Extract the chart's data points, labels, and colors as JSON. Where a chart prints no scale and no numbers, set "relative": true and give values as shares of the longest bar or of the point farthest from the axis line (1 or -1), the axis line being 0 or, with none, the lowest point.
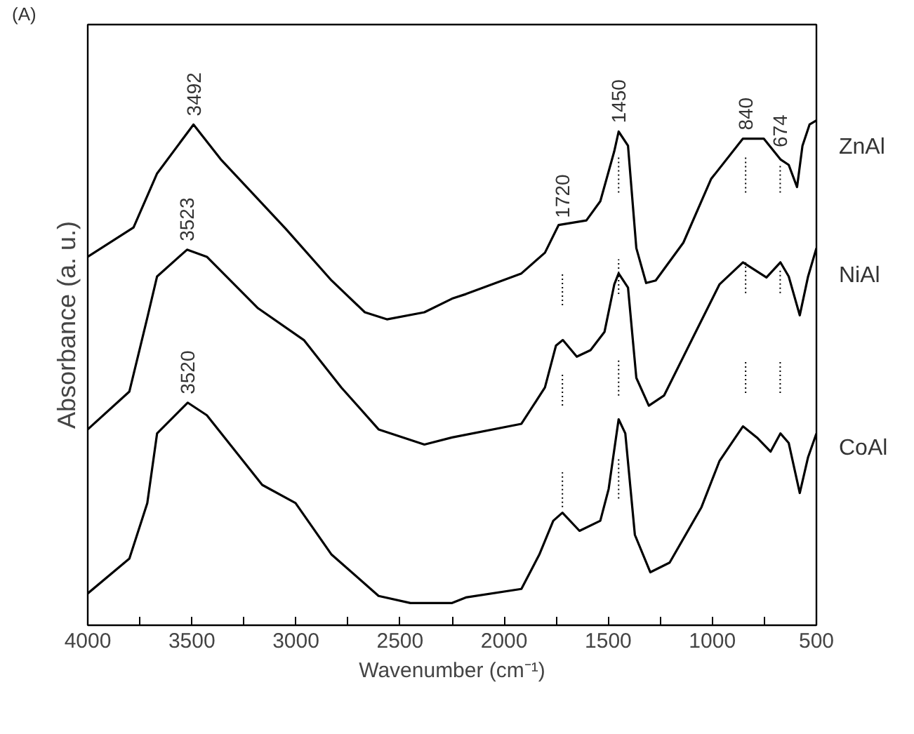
{
  "chart_data": {
    "type": "line",
    "relative": true,
    "xlabel": "Wavenumber (cm⁻¹)",
    "ylabel": "Absorbance (a. u.)",
    "xlim": [
      4000,
      500
    ],
    "xticks": [
      4000,
      {
        "value": 3750,
        "label": null
      },
      3500,
      {
        "value": 3250,
        "label": null
      },
      3000,
      {
        "value": 2750,
        "label": null
      },
      2500,
      {
        "value": 2250,
        "label": null
      },
      2000,
      {
        "value": 1750,
        "label": null
      },
      1500,
      {
        "value": 1250,
        "label": null
      },
      1000,
      {
        "value": 750,
        "label": null
      },
      500
    ],
    "grid": false,
    "legend": false,
    "marker": "none",
    "line_style": "solid",
    "series": [
      {
        "name": "ZnAl",
        "color": "#000000",
        "x": [
          4000,
          3780,
          3667,
          3492,
          3361,
          3048,
          2829,
          2669,
          2563,
          2383,
          2250,
          2184,
          1917,
          1804,
          1738,
          1605,
          1538,
          1471,
          1450,
          1405,
          1365,
          1318,
          1272,
          1139,
          1006,
          853,
          753,
          673,
          633,
          593,
          567,
          533,
          500
        ],
        "values": [
          0.73,
          0.788,
          0.895,
          0.992,
          0.923,
          0.785,
          0.683,
          0.62,
          0.606,
          0.62,
          0.647,
          0.656,
          0.697,
          0.738,
          0.793,
          0.802,
          0.84,
          0.939,
          0.978,
          0.95,
          0.747,
          0.678,
          0.683,
          0.758,
          0.884,
          0.964,
          0.964,
          0.923,
          0.912,
          0.868,
          0.95,
          0.992,
          1.0
        ]
      },
      {
        "name": "NiAl",
        "color": "#000000",
        "x": [
          4000,
          3800,
          3714,
          3667,
          3523,
          3428,
          3182,
          2962,
          2782,
          2603,
          2383,
          2250,
          1917,
          1804,
          1751,
          1718,
          1651,
          1585,
          1518,
          1471,
          1450,
          1405,
          1365,
          1305,
          1232,
          1099,
          966,
          853,
          740,
          673,
          633,
          580,
          540,
          500
        ],
        "values": [
          0.388,
          0.463,
          0.609,
          0.691,
          0.744,
          0.73,
          0.628,
          0.565,
          0.471,
          0.388,
          0.358,
          0.372,
          0.399,
          0.471,
          0.554,
          0.565,
          0.532,
          0.545,
          0.581,
          0.675,
          0.697,
          0.669,
          0.49,
          0.435,
          0.455,
          0.565,
          0.675,
          0.719,
          0.689,
          0.719,
          0.691,
          0.614,
          0.691,
          0.747
        ]
      },
      {
        "name": "CoAl",
        "color": "#000000",
        "x": [
          4000,
          3800,
          3714,
          3667,
          3520,
          3428,
          3162,
          3002,
          2829,
          2603,
          2450,
          2297,
          2250,
          2184,
          1917,
          1831,
          1764,
          1720,
          1638,
          1538,
          1498,
          1450,
          1418,
          1372,
          1298,
          1205,
          1052,
          966,
          853,
          786,
          720,
          673,
          633,
          580,
          540,
          500
        ],
        "values": [
          0.063,
          0.132,
          0.242,
          0.38,
          0.441,
          0.416,
          0.278,
          0.242,
          0.14,
          0.058,
          0.044,
          0.044,
          0.044,
          0.055,
          0.072,
          0.14,
          0.207,
          0.223,
          0.187,
          0.207,
          0.27,
          0.408,
          0.38,
          0.179,
          0.105,
          0.124,
          0.234,
          0.325,
          0.394,
          0.372,
          0.344,
          0.38,
          0.361,
          0.262,
          0.333,
          0.38
        ]
      },
      {
        "color": "#000000",
        "line_style": "dotted",
        "x": [
          1450,
          1450
        ],
        "values": [
          0.857,
          0.93
        ]
      },
      {
        "color": "#000000",
        "line_style": "dotted",
        "x": [
          840,
          840
        ],
        "values": [
          0.857,
          0.93
        ]
      },
      {
        "color": "#000000",
        "line_style": "dotted",
        "x": [
          674,
          674
        ],
        "values": [
          0.857,
          0.912
        ]
      },
      {
        "color": "#000000",
        "line_style": "dotted",
        "x": [
          1720,
          1720
        ],
        "values": [
          0.634,
          0.697
        ]
      },
      {
        "color": "#000000",
        "line_style": "dotted",
        "x": [
          1450,
          1450
        ],
        "values": [
          0.656,
          0.725
        ]
      },
      {
        "color": "#000000",
        "line_style": "dotted",
        "x": [
          840,
          840
        ],
        "values": [
          0.658,
          0.719
        ]
      },
      {
        "color": "#000000",
        "line_style": "dotted",
        "x": [
          674,
          674
        ],
        "values": [
          0.658,
          0.705
        ]
      },
      {
        "color": "#000000",
        "line_style": "dotted",
        "x": [
          1720,
          1720
        ],
        "values": [
          0.435,
          0.499
        ]
      },
      {
        "color": "#000000",
        "line_style": "dotted",
        "x": [
          1450,
          1450
        ],
        "values": [
          0.455,
          0.526
        ]
      },
      {
        "color": "#000000",
        "line_style": "dotted",
        "x": [
          840,
          840
        ],
        "values": [
          0.46,
          0.526
        ]
      },
      {
        "color": "#000000",
        "line_style": "dotted",
        "x": [
          674,
          674
        ],
        "values": [
          0.46,
          0.526
        ]
      },
      {
        "color": "#000000",
        "line_style": "dotted",
        "x": [
          1720,
          1720
        ],
        "values": [
          0.234,
          0.303
        ]
      },
      {
        "color": "#000000",
        "line_style": "dotted",
        "x": [
          1450,
          1450
        ],
        "values": [
          0.251,
          0.331
        ]
      }
    ],
    "annotations": [
      "(A)",
      {
        "text": "3492",
        "x": 3492,
        "y": 0.992
      },
      {
        "text": "3523",
        "x": 3523,
        "y": 0.744
      },
      {
        "text": "3520",
        "x": 3520,
        "y": 0.441
      },
      {
        "text": "1720",
        "x": 1720,
        "y": 0.79
      },
      {
        "text": "1450",
        "x": 1450,
        "y": 0.978
      },
      {
        "text": "840",
        "x": 840,
        "y": 0.964
      },
      {
        "text": "674",
        "x": 674,
        "y": 0.93
      }
    ]
  }
}
